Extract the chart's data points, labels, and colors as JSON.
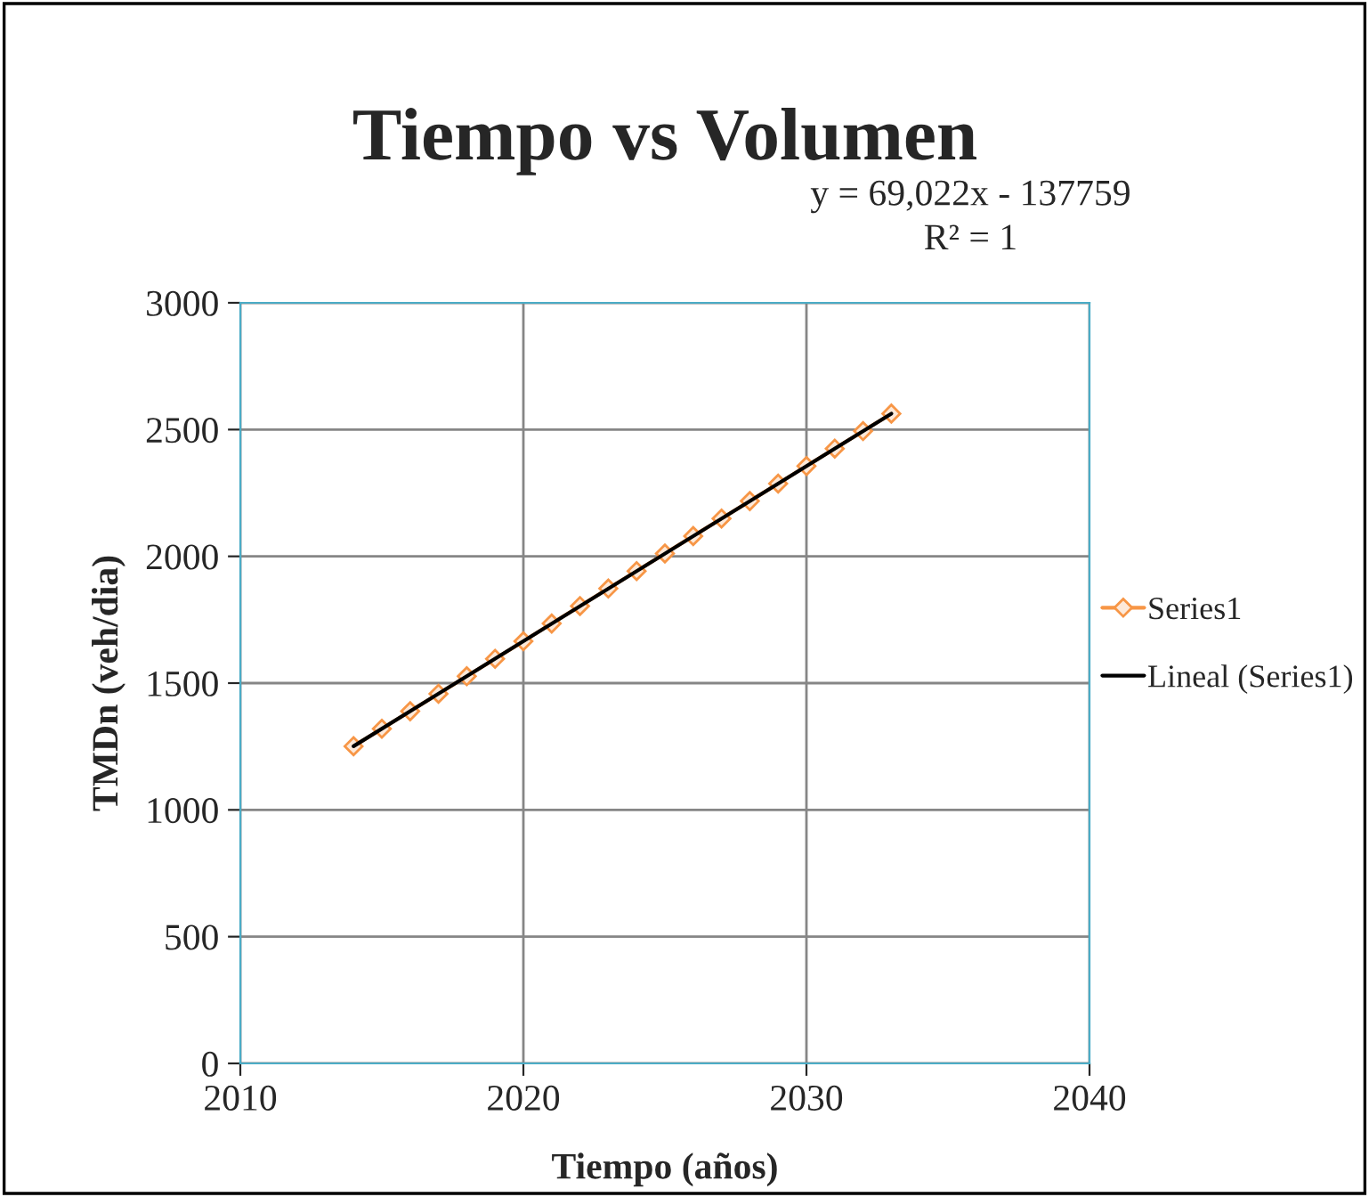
{
  "chart_data": {
    "type": "line",
    "title": "Tiempo vs Volumen",
    "xlabel": "Tiempo (años)",
    "ylabel": "TMDn (veh/dia)",
    "annotations": [
      "y = 69,022x - 137759",
      "R² = 1"
    ],
    "x": [
      2014,
      2015,
      2016,
      2017,
      2018,
      2019,
      2020,
      2021,
      2022,
      2023,
      2024,
      2025,
      2026,
      2027,
      2028,
      2029,
      2030,
      2031,
      2032,
      2033
    ],
    "series": [
      {
        "name": "Series1",
        "color": "#f79646",
        "marker": "diamond",
        "values": [
          1251,
          1320,
          1389,
          1458,
          1527,
          1596,
          1665,
          1735,
          1804,
          1873,
          1942,
          2011,
          2080,
          2149,
          2218,
          2287,
          2356,
          2425,
          2494,
          2563
        ]
      },
      {
        "name": "Lineal (Series1)",
        "color": "#000000",
        "marker": "none",
        "x": [
          2014,
          2033
        ],
        "values": [
          1251,
          2563
        ]
      }
    ],
    "xlim": [
      2010,
      2040
    ],
    "xticks": [
      2010,
      2020,
      2030,
      2040
    ],
    "ylim": [
      0,
      3000
    ],
    "yticks": [
      0,
      500,
      1000,
      1500,
      2000,
      2500,
      3000
    ],
    "grid": true,
    "legend": "right"
  }
}
